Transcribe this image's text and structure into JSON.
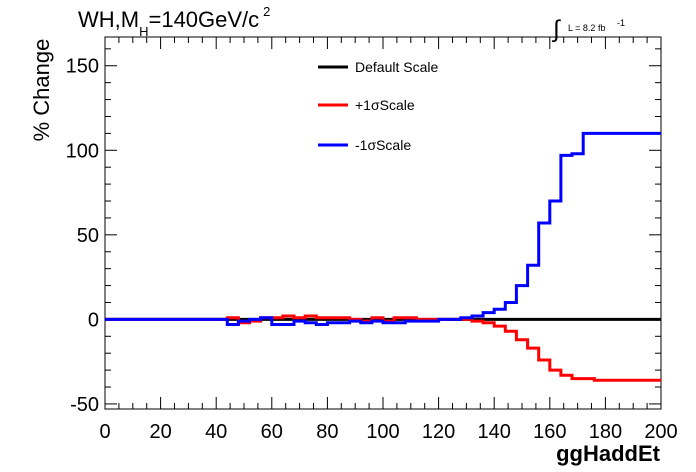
{
  "chart_data": {
    "type": "line",
    "title": {
      "prefix": "WH,M",
      "subscript": "H",
      "value": "=140GeV/c",
      "superscript": "2"
    },
    "luminosity": {
      "symbol": "∫",
      "label": "L = 8.2 fb",
      "superscript": "-1"
    },
    "xlabel": "ggHaddEt",
    "ylabel": "% Change",
    "xlim": [
      0,
      200
    ],
    "ylim": [
      -53,
      167
    ],
    "xticks": [
      0,
      20,
      40,
      60,
      80,
      100,
      120,
      140,
      160,
      180,
      200
    ],
    "yticks": [
      -50,
      0,
      50,
      100,
      150
    ],
    "legend_position": "top-center",
    "grid": false,
    "bin_edges": [
      0,
      44,
      48,
      52,
      56,
      60,
      64,
      68,
      72,
      76,
      80,
      84,
      88,
      92,
      96,
      100,
      104,
      108,
      112,
      116,
      120,
      124,
      128,
      132,
      136,
      140,
      144,
      148,
      152,
      156,
      160,
      164,
      168,
      172,
      176,
      180,
      184,
      188,
      192,
      196,
      200
    ],
    "series": [
      {
        "name": "Default Scale",
        "color": "#000000",
        "values": [
          0,
          0,
          0,
          0,
          0,
          0,
          0,
          0,
          0,
          0,
          0,
          0,
          0,
          0,
          0,
          0,
          0,
          0,
          0,
          0,
          0,
          0,
          0,
          0,
          0,
          0,
          0,
          0,
          0,
          0,
          0,
          0,
          0,
          0,
          0,
          0,
          0,
          0,
          0,
          0
        ]
      },
      {
        "name": "+1σScale",
        "color": "#ff0000",
        "values": [
          0,
          1,
          -2,
          -1,
          1,
          1,
          2,
          1,
          2,
          1,
          1,
          1,
          0,
          -1,
          1,
          -1,
          1,
          1,
          0,
          0,
          0,
          0,
          0,
          -1,
          -2,
          -4,
          -7,
          -12,
          -17,
          -24,
          -30,
          -33,
          -35,
          -35,
          -36,
          -36,
          -36,
          -36,
          -36,
          -36
        ]
      },
      {
        "name": "-1σScale",
        "color": "#0000ff",
        "values": [
          0,
          -3,
          -1,
          0,
          1,
          -3,
          -3,
          -1,
          -2,
          -3,
          -2,
          -2,
          -1,
          -2,
          -1,
          -2,
          -2,
          -1,
          -1,
          -1,
          0,
          0,
          1,
          2,
          4,
          6,
          10,
          20,
          32,
          57,
          70,
          97,
          98,
          110,
          110,
          110,
          110,
          110,
          110,
          110
        ]
      }
    ]
  }
}
